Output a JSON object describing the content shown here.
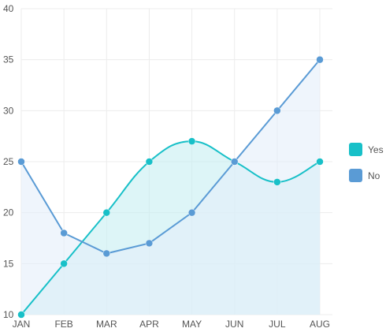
{
  "chart_data": {
    "type": "area",
    "categories": [
      "JAN",
      "FEB",
      "MAR",
      "APR",
      "MAY",
      "JUN",
      "JUL",
      "AUG"
    ],
    "series": [
      {
        "name": "Yes",
        "values": [
          10,
          15,
          20,
          25,
          27,
          25,
          23,
          25
        ],
        "color": "#18c0c8",
        "fill": "#c7eef2",
        "smooth": true
      },
      {
        "name": "No",
        "values": [
          25,
          18,
          16,
          17,
          20,
          25,
          30,
          35
        ],
        "color": "#5a9bd5",
        "fill": "#e4eefa",
        "smooth": false
      }
    ],
    "yticks": [
      10,
      15,
      20,
      25,
      30,
      35,
      40
    ],
    "ylim": [
      10,
      40
    ],
    "grid": true,
    "legend_position": "right",
    "title": "",
    "xlabel": "",
    "ylabel": ""
  }
}
